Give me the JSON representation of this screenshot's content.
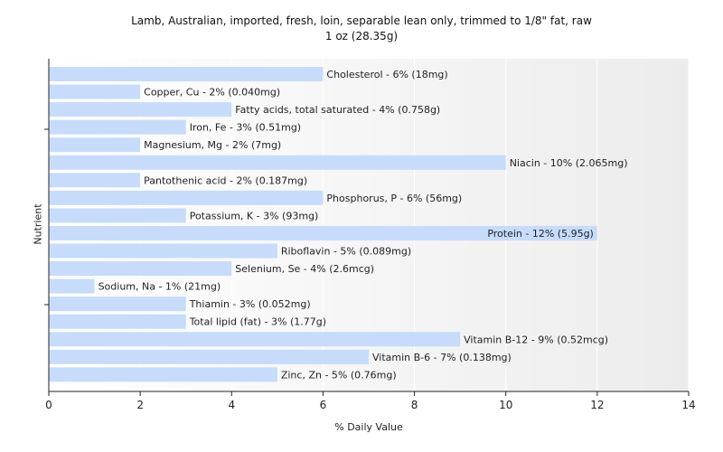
{
  "chart_data": {
    "type": "bar",
    "orientation": "horizontal",
    "title": "Lamb, Australian, imported, fresh, loin, separable lean only, trimmed to 1/8\" fat, raw",
    "subtitle": "1 oz (28.35g)",
    "xlabel": "% Daily Value",
    "ylabel": "Nutrient",
    "xlim": [
      0,
      14
    ],
    "xticks": [
      "0",
      "2",
      "4",
      "6",
      "8",
      "10",
      "12",
      "14"
    ],
    "grid": true,
    "bar_color": "#c6dcfa",
    "categories": [
      "Cholesterol",
      "Copper, Cu",
      "Fatty acids, total saturated",
      "Iron, Fe",
      "Magnesium, Mg",
      "Niacin",
      "Pantothenic acid",
      "Phosphorus, P",
      "Potassium, K",
      "Protein",
      "Riboflavin",
      "Selenium, Se",
      "Sodium, Na",
      "Thiamin",
      "Total lipid (fat)",
      "Vitamin B-12",
      "Vitamin B-6",
      "Zinc, Zn"
    ],
    "values": [
      6,
      2,
      4,
      3,
      2,
      10,
      2,
      6,
      3,
      12,
      5,
      4,
      1,
      3,
      3,
      9,
      7,
      5
    ],
    "labels": [
      "Cholesterol - 6% (18mg)",
      "Copper, Cu - 2% (0.040mg)",
      "Fatty acids, total saturated - 4% (0.758g)",
      "Iron, Fe - 3% (0.51mg)",
      "Magnesium, Mg - 2% (7mg)",
      "Niacin - 10% (2.065mg)",
      "Pantothenic acid - 2% (0.187mg)",
      "Phosphorus, P - 6% (56mg)",
      "Potassium, K - 3% (93mg)",
      "Protein - 12% (5.95g)",
      "Riboflavin - 5% (0.089mg)",
      "Selenium, Se - 4% (2.6mcg)",
      "Sodium, Na - 1% (21mg)",
      "Thiamin - 3% (0.052mg)",
      "Total lipid (fat) - 3% (1.77g)",
      "Vitamin B-12 - 9% (0.52mcg)",
      "Vitamin B-6 - 7% (0.138mg)",
      "Zinc, Zn - 5% (0.76mg)"
    ]
  }
}
